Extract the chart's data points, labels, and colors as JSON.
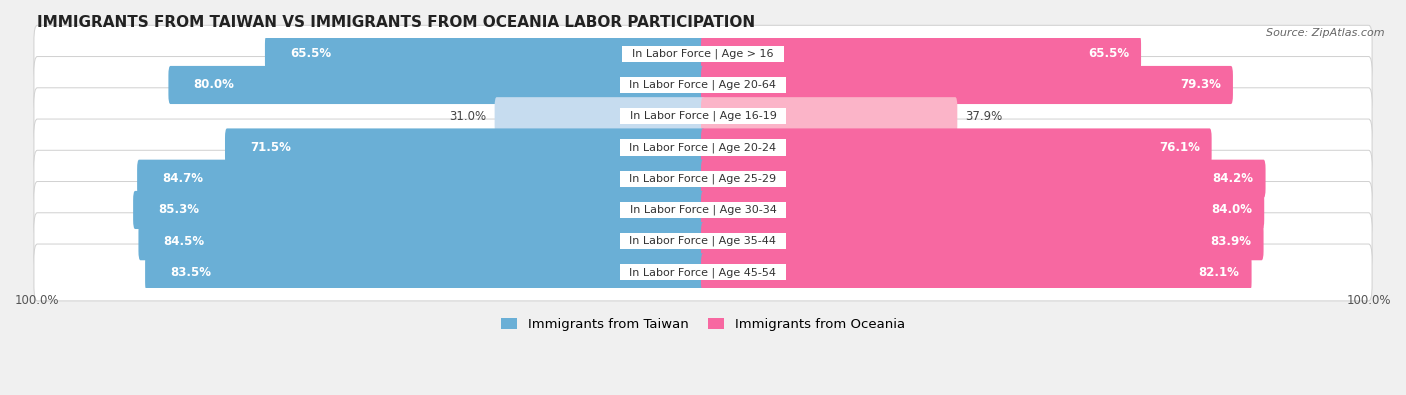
{
  "title": "IMMIGRANTS FROM TAIWAN VS IMMIGRANTS FROM OCEANIA LABOR PARTICIPATION",
  "source": "Source: ZipAtlas.com",
  "categories": [
    "In Labor Force | Age > 16",
    "In Labor Force | Age 20-64",
    "In Labor Force | Age 16-19",
    "In Labor Force | Age 20-24",
    "In Labor Force | Age 25-29",
    "In Labor Force | Age 30-34",
    "In Labor Force | Age 35-44",
    "In Labor Force | Age 45-54"
  ],
  "taiwan_values": [
    65.5,
    80.0,
    31.0,
    71.5,
    84.7,
    85.3,
    84.5,
    83.5
  ],
  "oceania_values": [
    65.5,
    79.3,
    37.9,
    76.1,
    84.2,
    84.0,
    83.9,
    82.1
  ],
  "taiwan_color": "#6aafd6",
  "taiwan_color_light": "#c6dcef",
  "oceania_color": "#f768a1",
  "oceania_color_light": "#fbb4c8",
  "max_value": 100.0,
  "background_color": "#f0f0f0",
  "row_bg_color": "#ffffff",
  "row_bg_edge_color": "#d0d0d0",
  "label_fontsize": 8.5,
  "title_fontsize": 11,
  "legend_taiwan": "Immigrants from Taiwan",
  "legend_oceania": "Immigrants from Oceania"
}
